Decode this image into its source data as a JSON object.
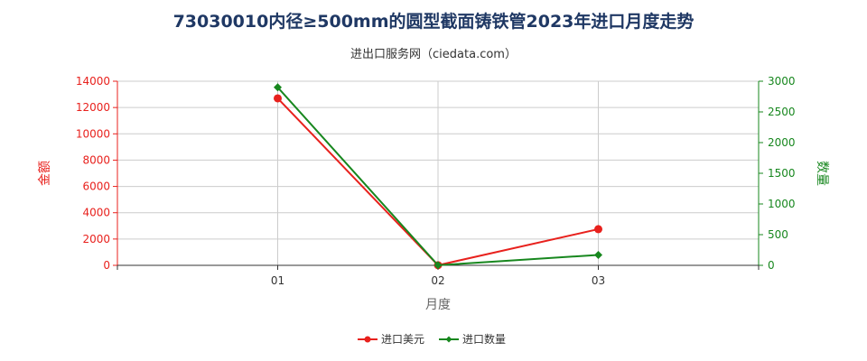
{
  "chart_data": {
    "type": "line",
    "title": "73030010内径≥500mm的圆型截面铸铁管2023年进口月度走势",
    "subtitle": "进出口服务网（ciedata.com）",
    "xlabel": "月度",
    "ylabel_left": "金额",
    "ylabel_right": "数量",
    "categories": [
      "01",
      "02",
      "03"
    ],
    "y_left": {
      "min": 0,
      "max": 14000,
      "ticks": [
        0,
        2000,
        4000,
        6000,
        8000,
        10000,
        12000,
        14000
      ]
    },
    "y_right": {
      "min": 0,
      "max": 3000,
      "ticks": [
        0,
        500,
        1000,
        1500,
        2000,
        2500,
        3000
      ]
    },
    "grid": true,
    "legend_position": "bottom",
    "series": [
      {
        "name": "进口美元",
        "axis": "left",
        "color": "#e8211d",
        "marker": "circle",
        "values": [
          12700,
          10,
          2750
        ]
      },
      {
        "name": "进口数量",
        "axis": "right",
        "color": "#17871e",
        "marker": "diamond",
        "values": [
          2900,
          2,
          170
        ]
      }
    ],
    "colors": {
      "left_axis": "#e8211d",
      "right_axis": "#17871e",
      "title": "#1f3864",
      "grid": "#cccccc"
    }
  }
}
